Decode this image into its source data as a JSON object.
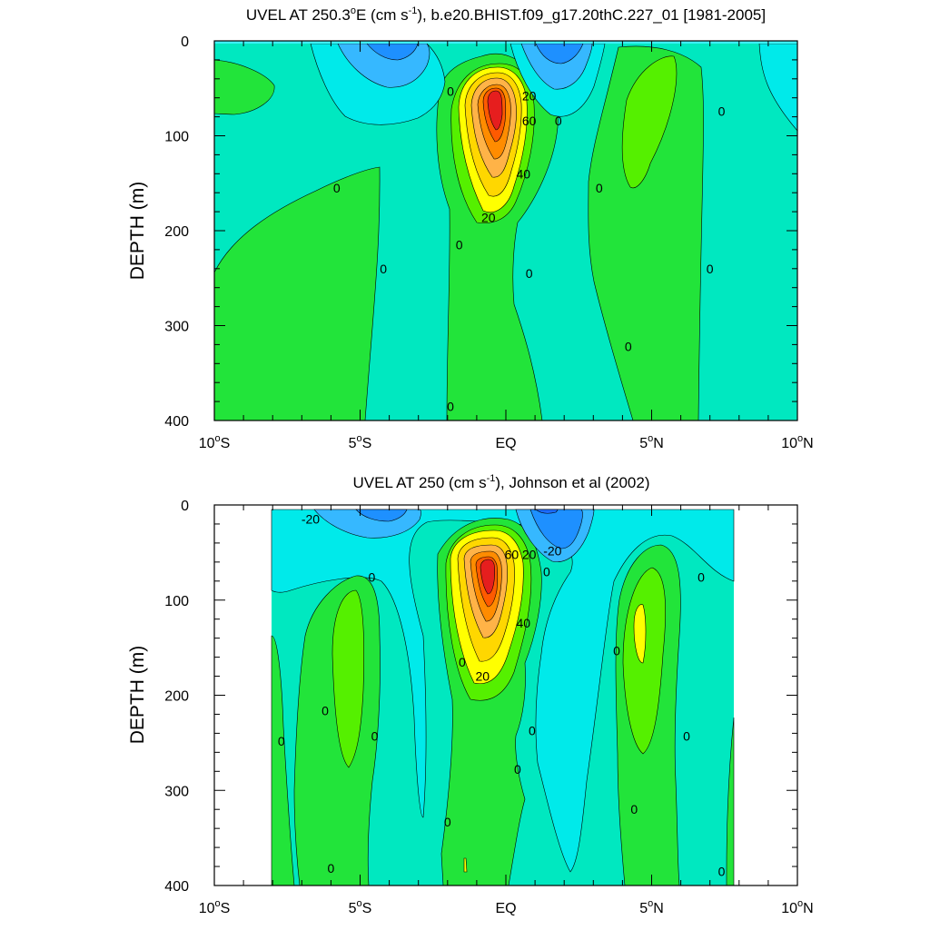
{
  "colors": {
    "blue_dark": "#1e90ff",
    "blue_mid": "#36b8ff",
    "cyan": "#00eaea",
    "aqua_light": "#3df0f8",
    "teal": "#00e8c0",
    "green": "#22e43a",
    "green_bright": "#55f000",
    "yellow": "#ffff00",
    "gold": "#ffd700",
    "orange_light": "#ffb347",
    "orange": "#ff8c00",
    "red_orange": "#ff5a00",
    "red": "#e61e1e"
  },
  "chart_data": [
    {
      "type": "contour",
      "title": "UVEL AT 250.3°E (cm s-1), b.e20.BHIST.f09_g17.20thC.227_01 [1981-2005]",
      "title_parts": {
        "prefix": "UVEL AT 250.3",
        "degree": "o",
        "mid": "E (cm s",
        "exponent": "-1",
        "suffix": "), b.e20.BHIST.f09_g17.20thC.227_01 [1981-2005]"
      },
      "xlabel": "",
      "ylabel": "DEPTH (m)",
      "xlim": [
        -10,
        10
      ],
      "ylim": [
        400,
        0
      ],
      "x_ticks": [
        -10,
        -5,
        0,
        5,
        10
      ],
      "x_tick_labels": [
        {
          "num": "10",
          "deg": "o",
          "hemi": "S"
        },
        {
          "num": "5",
          "deg": "o",
          "hemi": "S"
        },
        {
          "num": "EQ",
          "deg": "",
          "hemi": ""
        },
        {
          "num": "5",
          "deg": "o",
          "hemi": "N"
        },
        {
          "num": "10",
          "deg": "o",
          "hemi": "N"
        }
      ],
      "y_ticks": [
        0,
        100,
        200,
        300,
        400
      ],
      "y_tick_labels": [
        "0",
        "100",
        "200",
        "300",
        "400"
      ],
      "data_extent": {
        "x": [
          -10,
          10
        ],
        "depth": [
          5,
          400
        ]
      },
      "contour_interval": 5,
      "features": [
        {
          "name": "equatorial undercurrent core",
          "x": -0.1,
          "depth": 90,
          "max_value": 85
        },
        {
          "name": "northern eastward branch",
          "x": 5.0,
          "depth": 110,
          "max_value": 10
        },
        {
          "name": "southern eastward flow",
          "x": -5.5,
          "depth": 260,
          "max_value": 5
        },
        {
          "name": "surface westward flow north",
          "x": 1.8,
          "depth": 10,
          "min_value": -20
        },
        {
          "name": "surface westward flow south",
          "x": -2.9,
          "depth": 10,
          "min_value": -15
        }
      ],
      "contour_labels": [
        {
          "text": "0",
          "x": -1.9,
          "depth": 53
        },
        {
          "text": "20",
          "x": 0.8,
          "depth": 58
        },
        {
          "text": "60",
          "x": 0.8,
          "depth": 84
        },
        {
          "text": "0",
          "x": 1.8,
          "depth": 84
        },
        {
          "text": "0",
          "x": 7.4,
          "depth": 74
        },
        {
          "text": "40",
          "x": 0.6,
          "depth": 140
        },
        {
          "text": "0",
          "x": -5.8,
          "depth": 155
        },
        {
          "text": "0",
          "x": 3.2,
          "depth": 155
        },
        {
          "text": "20",
          "x": -0.6,
          "depth": 186
        },
        {
          "text": "0",
          "x": -1.6,
          "depth": 215
        },
        {
          "text": "0",
          "x": -4.2,
          "depth": 240
        },
        {
          "text": "0",
          "x": 0.8,
          "depth": 245
        },
        {
          "text": "0",
          "x": 7.0,
          "depth": 240
        },
        {
          "text": "0",
          "x": 4.2,
          "depth": 322
        },
        {
          "text": "0",
          "x": -1.9,
          "depth": 385
        }
      ]
    },
    {
      "type": "contour",
      "title": "UVEL AT 250 (cm s-1), Johnson et al (2002)",
      "title_parts": {
        "prefix": "UVEL AT 250",
        "degree": "",
        "mid": " (cm s",
        "exponent": "-1",
        "suffix": "), Johnson et al (2002)"
      },
      "xlabel": "",
      "ylabel": "DEPTH (m)",
      "xlim": [
        -10,
        10
      ],
      "ylim": [
        400,
        0
      ],
      "x_ticks": [
        -10,
        -5,
        0,
        5,
        10
      ],
      "x_tick_labels": [
        {
          "num": "10",
          "deg": "o",
          "hemi": "S"
        },
        {
          "num": "5",
          "deg": "o",
          "hemi": "S"
        },
        {
          "num": "EQ",
          "deg": "",
          "hemi": ""
        },
        {
          "num": "5",
          "deg": "o",
          "hemi": "N"
        },
        {
          "num": "10",
          "deg": "o",
          "hemi": "N"
        }
      ],
      "y_ticks": [
        0,
        100,
        200,
        300,
        400
      ],
      "y_tick_labels": [
        "0",
        "100",
        "200",
        "300",
        "400"
      ],
      "data_extent": {
        "x": [
          -8,
          8.2
        ],
        "depth": [
          5,
          400
        ]
      },
      "contour_interval": 5,
      "features": [
        {
          "name": "equatorial undercurrent core",
          "x": -0.3,
          "depth": 70,
          "max_value": 90
        },
        {
          "name": "northern eastward branch",
          "x": 5.0,
          "depth": 130,
          "max_value": 15
        },
        {
          "name": "southern eastward branch",
          "x": -5.0,
          "depth": 170,
          "max_value": 10
        },
        {
          "name": "surface westward flow north",
          "x": 2.3,
          "depth": 15,
          "min_value": -35
        },
        {
          "name": "surface westward flow south",
          "x": -4.0,
          "depth": 15,
          "min_value": -25
        }
      ],
      "contour_labels": [
        {
          "text": "-20",
          "x": -6.7,
          "depth": 15
        },
        {
          "text": "60",
          "x": 0.2,
          "depth": 52
        },
        {
          "text": "20",
          "x": 0.8,
          "depth": 52
        },
        {
          "text": "-20",
          "x": 1.6,
          "depth": 48
        },
        {
          "text": "0",
          "x": 1.4,
          "depth": 70
        },
        {
          "text": "0",
          "x": -4.6,
          "depth": 76
        },
        {
          "text": "0",
          "x": 6.7,
          "depth": 76
        },
        {
          "text": "40",
          "x": 0.6,
          "depth": 124
        },
        {
          "text": "0",
          "x": 3.8,
          "depth": 153
        },
        {
          "text": "0",
          "x": -1.5,
          "depth": 165
        },
        {
          "text": "20",
          "x": -0.8,
          "depth": 180
        },
        {
          "text": "0",
          "x": -6.2,
          "depth": 216
        },
        {
          "text": "0",
          "x": 0.9,
          "depth": 237
        },
        {
          "text": "0",
          "x": -4.5,
          "depth": 243
        },
        {
          "text": "0",
          "x": 6.2,
          "depth": 243
        },
        {
          "text": "0",
          "x": -7.7,
          "depth": 248
        },
        {
          "text": "0",
          "x": 0.4,
          "depth": 278
        },
        {
          "text": "0",
          "x": 4.4,
          "depth": 320
        },
        {
          "text": "0",
          "x": -2.0,
          "depth": 333
        },
        {
          "text": "0",
          "x": -6.0,
          "depth": 382
        },
        {
          "text": "0",
          "x": 7.4,
          "depth": 385
        }
      ]
    }
  ]
}
